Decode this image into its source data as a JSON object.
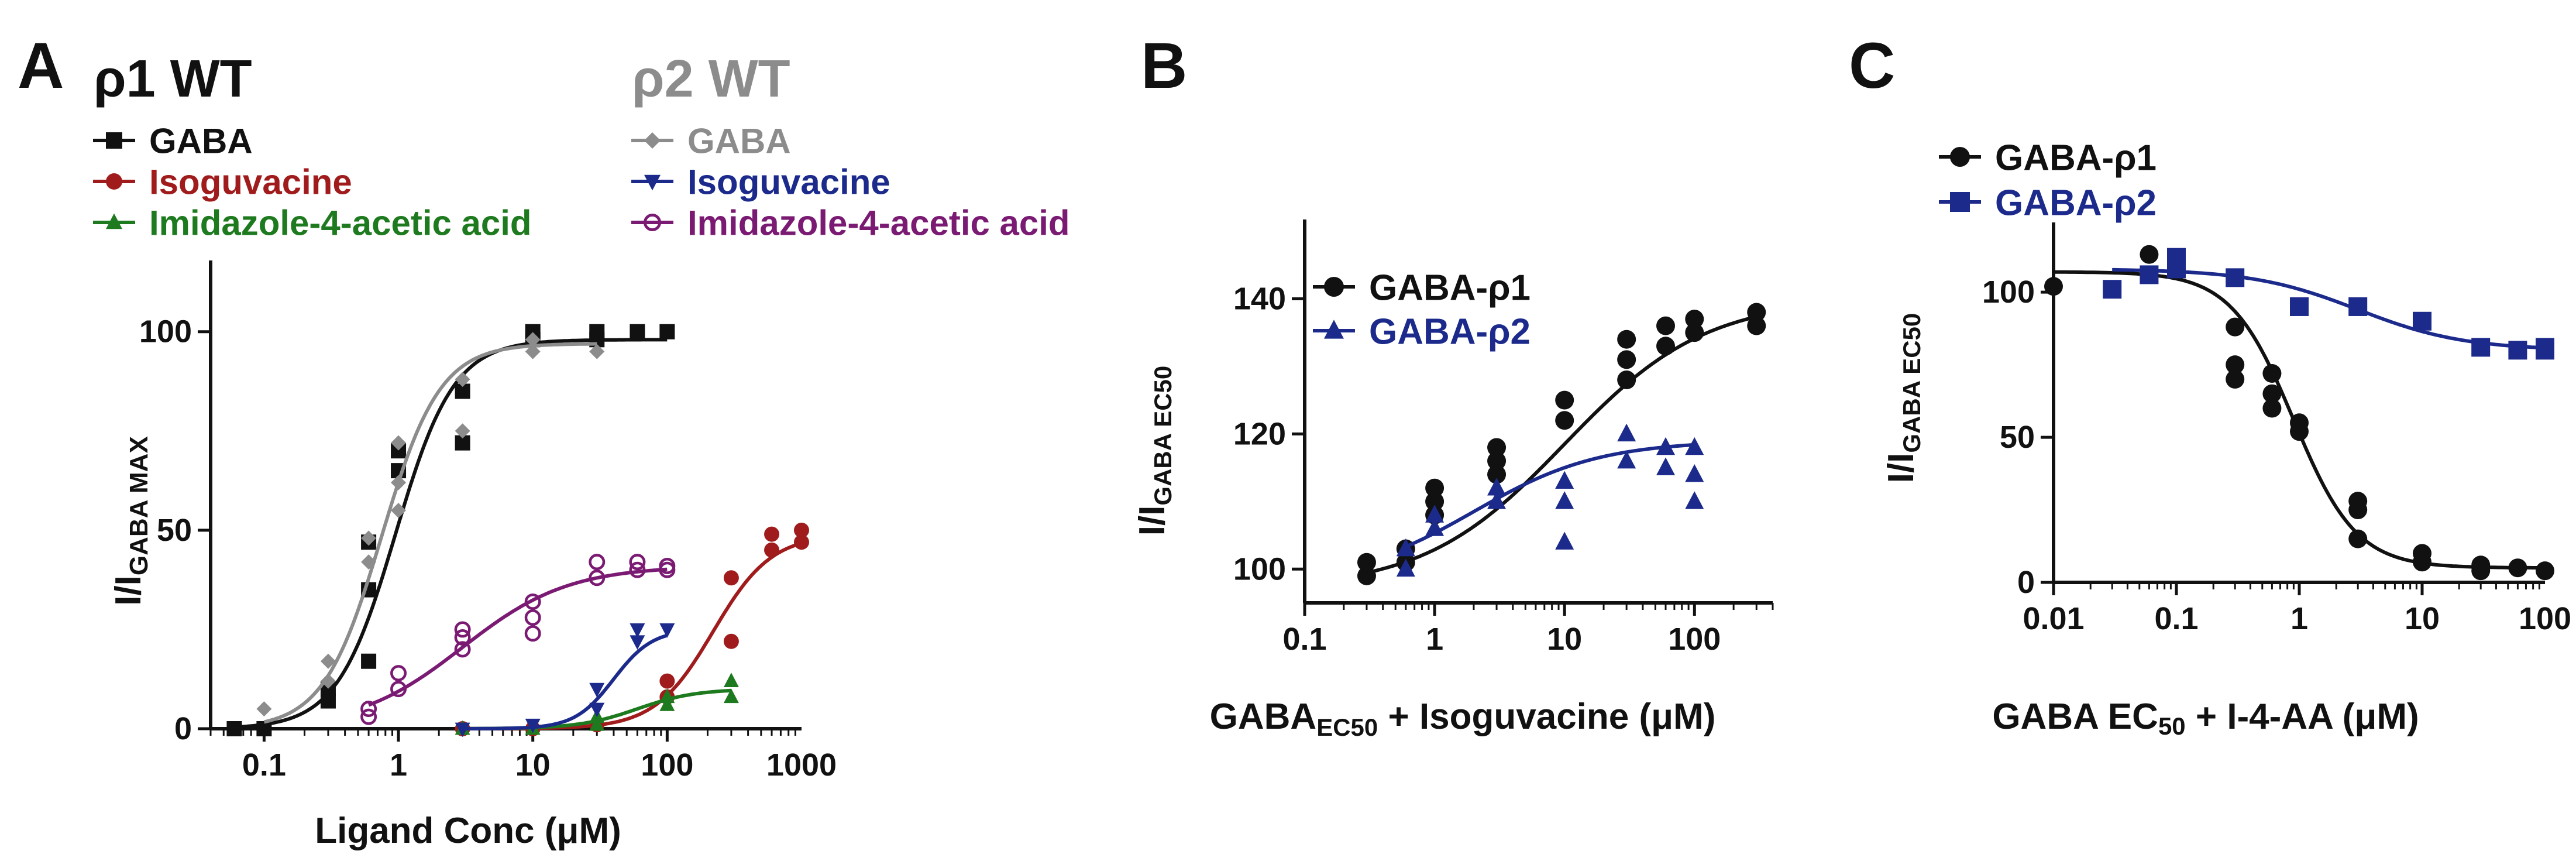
{
  "colors": {
    "black": "#111111",
    "gray": "#8c8c8c",
    "red": "#a01c1c",
    "green": "#1e7a1e",
    "navy": "#1c2a8c",
    "purple": "#7a1a73"
  },
  "panels": [
    {
      "letter": "A",
      "group_titles": [
        "ρ1 WT",
        "ρ2 WT"
      ],
      "legend": [
        {
          "label": "GABA",
          "color": "#111111",
          "marker": "square"
        },
        {
          "label": "Isoguvacine",
          "color": "#a01c1c",
          "marker": "circle"
        },
        {
          "label": "Imidazole-4-acetic acid",
          "color": "#1e7a1e",
          "marker": "triangle"
        },
        {
          "label": "GABA",
          "color": "#8c8c8c",
          "marker": "diamond"
        },
        {
          "label": "Isoguvacine",
          "color": "#1c2a8c",
          "marker": "tri-down"
        },
        {
          "label": "Imidazole-4-acetic acid",
          "color": "#7a1a73",
          "marker": "open-circle"
        }
      ],
      "xlabel": "Ligand Conc (μM)",
      "ylabel": "I/I",
      "ylabel_sub": "GABA MAX",
      "xticks": [
        "0.1",
        "1",
        "10",
        "100",
        "1000"
      ],
      "yticks": [
        "0",
        "50",
        "100"
      ]
    },
    {
      "letter": "B",
      "legend": [
        {
          "label": "GABA-ρ1",
          "color": "#111111",
          "marker": "circle"
        },
        {
          "label": "GABA-ρ2",
          "color": "#1c2a8c",
          "marker": "triangle"
        }
      ],
      "xlabel_pre": "GABA",
      "xlabel_sub": "EC50",
      "xlabel_post": " + Isoguvacine (μM)",
      "ylabel": "I/I",
      "ylabel_sub": "GABA EC50",
      "xticks": [
        "0.1",
        "1",
        "10",
        "100"
      ],
      "yticks": [
        "100",
        "120",
        "140"
      ]
    },
    {
      "letter": "C",
      "legend": [
        {
          "label": "GABA-ρ1",
          "color": "#111111",
          "marker": "circle"
        },
        {
          "label": "GABA-ρ2",
          "color": "#1c2a8c",
          "marker": "square"
        }
      ],
      "xlabel_pre": "GABA EC",
      "xlabel_sub": "50",
      "xlabel_post": " + I-4-AA (μM)",
      "ylabel": "I/I",
      "ylabel_sub": "GABA EC50",
      "xticks": [
        "0.01",
        "0.1",
        "1",
        "10",
        "100"
      ],
      "yticks": [
        "0",
        "50",
        "100"
      ]
    }
  ],
  "chart_data": [
    {
      "panel": "A",
      "type": "scatter",
      "xscale": "log",
      "xlim": [
        0.04,
        1000
      ],
      "ylim": [
        0,
        115
      ],
      "series": [
        {
          "name": "ρ1 WT GABA",
          "color": "#111111",
          "marker": "square",
          "x": [
            0.06,
            0.1,
            0.3,
            0.3,
            0.6,
            0.6,
            0.6,
            1,
            1,
            3,
            3,
            10,
            10,
            30,
            30,
            60,
            100
          ],
          "y": [
            0,
            0,
            7,
            10,
            17,
            35,
            47,
            65,
            70,
            72,
            85,
            98,
            100,
            100,
            98,
            100,
            100
          ],
          "fit": {
            "top": 98,
            "ec50": 0.95,
            "n": 2.0
          }
        },
        {
          "name": "ρ1 WT Isoguvacine",
          "color": "#a01c1c",
          "marker": "circle",
          "x": [
            3,
            10,
            30,
            100,
            100,
            300,
            300,
            600,
            600,
            1000,
            1000
          ],
          "y": [
            0,
            0,
            1,
            8,
            12,
            22,
            38,
            45,
            49,
            47,
            50
          ],
          "fit": {
            "top": 49,
            "ec50": 220,
            "n": 2.0
          }
        },
        {
          "name": "ρ1 WT Imidazole-4-acetic acid",
          "color": "#1e7a1e",
          "marker": "triangle",
          "x": [
            3,
            10,
            30,
            30,
            100,
            100,
            300,
            300
          ],
          "y": [
            0,
            0,
            1,
            3,
            6,
            8,
            8,
            12
          ],
          "fit": {
            "top": 10,
            "ec50": 60,
            "n": 2.0
          }
        },
        {
          "name": "ρ2 WT GABA",
          "color": "#8c8c8c",
          "marker": "diamond",
          "x": [
            0.1,
            0.3,
            0.3,
            0.6,
            0.6,
            1,
            1,
            1,
            3,
            3,
            10,
            10,
            30
          ],
          "y": [
            5,
            12,
            17,
            42,
            48,
            55,
            62,
            72,
            75,
            88,
            95,
            98,
            95
          ],
          "fit": {
            "top": 97,
            "ec50": 0.75,
            "n": 2.0
          }
        },
        {
          "name": "ρ2 WT Isoguvacine",
          "color": "#1c2a8c",
          "marker": "tri-down",
          "x": [
            3,
            10,
            30,
            30,
            60,
            60,
            100
          ],
          "y": [
            0,
            1,
            5,
            10,
            22,
            25,
            25
          ],
          "fit": {
            "top": 25,
            "ec50": 40,
            "n": 3.0
          }
        },
        {
          "name": "ρ2 WT Imidazole-4-acetic acid",
          "color": "#7a1a73",
          "marker": "open-circle",
          "x": [
            0.6,
            0.6,
            1,
            1,
            3,
            3,
            3,
            10,
            10,
            10,
            30,
            30,
            60,
            60,
            100,
            100
          ],
          "y": [
            3,
            5,
            10,
            14,
            20,
            23,
            25,
            24,
            28,
            32,
            38,
            42,
            40,
            42,
            40,
            41
          ],
          "fit": {
            "top": 41,
            "ec50": 3.0,
            "n": 1.1
          }
        }
      ]
    },
    {
      "panel": "B",
      "type": "scatter",
      "xscale": "log",
      "xlim": [
        0.1,
        400
      ],
      "ylim": [
        95,
        150
      ],
      "series": [
        {
          "name": "GABA-ρ1",
          "color": "#111111",
          "marker": "circle",
          "x": [
            0.3,
            0.3,
            0.6,
            0.6,
            1,
            1,
            1,
            3,
            3,
            3,
            10,
            10,
            30,
            30,
            30,
            60,
            60,
            100,
            100,
            300,
            300
          ],
          "y": [
            99,
            101,
            101,
            103,
            108,
            110,
            112,
            114,
            116,
            118,
            122,
            125,
            128,
            131,
            134,
            133,
            136,
            135,
            137,
            136,
            138
          ],
          "fit": {
            "bottom": 97,
            "top": 140,
            "ec50": 10,
            "n": 0.8
          }
        },
        {
          "name": "GABA-ρ2",
          "color": "#1c2a8c",
          "marker": "triangle",
          "x": [
            0.6,
            0.6,
            1,
            1,
            3,
            3,
            10,
            10,
            10,
            30,
            30,
            60,
            60,
            100,
            100,
            100
          ],
          "y": [
            100,
            103,
            106,
            108,
            110,
            112,
            104,
            110,
            113,
            116,
            120,
            115,
            118,
            110,
            114,
            118
          ],
          "fit": {
            "bottom": 98,
            "top": 119,
            "ec50": 2.0,
            "n": 0.9
          }
        }
      ]
    },
    {
      "panel": "C",
      "type": "scatter",
      "xscale": "log",
      "xlim": [
        0.01,
        100
      ],
      "ylim": [
        0,
        120
      ],
      "series": [
        {
          "name": "GABA-ρ1",
          "color": "#111111",
          "marker": "circle",
          "x": [
            0.01,
            0.06,
            0.3,
            0.3,
            0.3,
            0.6,
            0.6,
            0.6,
            1,
            1,
            3,
            3,
            3,
            10,
            10,
            30,
            30,
            60,
            100
          ],
          "y": [
            102,
            113,
            88,
            75,
            70,
            72,
            65,
            60,
            55,
            52,
            28,
            25,
            15,
            10,
            7,
            6,
            4,
            5,
            4
          ],
          "fit": {
            "bottom": 5,
            "top": 107,
            "ic50": 0.9,
            "n": 1.7
          }
        },
        {
          "name": "GABA-ρ2",
          "color": "#1c2a8c",
          "marker": "square",
          "x": [
            0.03,
            0.06,
            0.1,
            0.1,
            0.3,
            1,
            3,
            10,
            30,
            60,
            100,
            100
          ],
          "y": [
            101,
            106,
            108,
            112,
            105,
            95,
            95,
            90,
            81,
            80,
            80,
            81
          ],
          "fit": {
            "bottom": 80,
            "top": 108,
            "ic50": 3,
            "n": 1.0
          }
        }
      ]
    }
  ]
}
